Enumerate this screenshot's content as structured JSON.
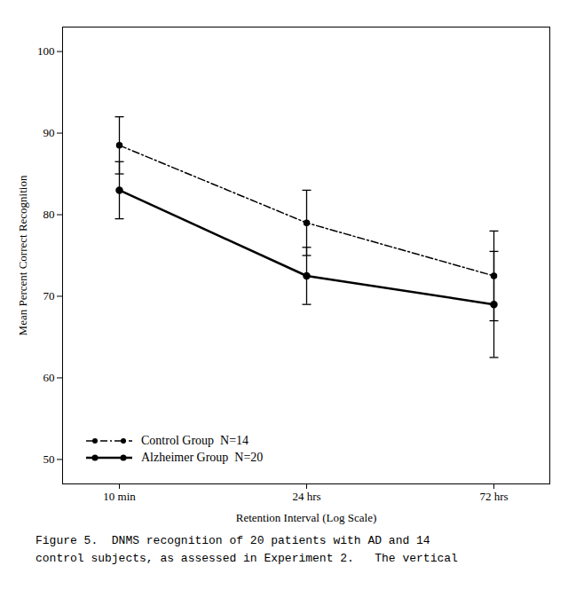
{
  "chart_data": {
    "type": "line",
    "xlabel": "Retention Interval (Log Scale)",
    "ylabel": "Mean Percent Correct Recognition",
    "categories": [
      "10 min",
      "24 hrs",
      "72 hrs"
    ],
    "series": [
      {
        "name": "Control Group  N=14",
        "color": "#000000",
        "marker": "circle",
        "line_style": "dashdot",
        "values": [
          88.5,
          79.0,
          72.5
        ],
        "errors": [
          3.5,
          4.0,
          5.5
        ]
      },
      {
        "name": "Alzheimer Group  N=20",
        "color": "#000000",
        "marker": "circle",
        "line_style": "solid",
        "values": [
          83.0,
          72.5,
          69.0
        ],
        "errors": [
          3.5,
          3.5,
          6.5
        ]
      }
    ],
    "ylim": [
      47,
      103
    ],
    "yticks": [
      50,
      60,
      70,
      80,
      90,
      100
    ],
    "grid": false,
    "legend": "lower left",
    "caption": [
      "Figure 5.  DNMS recognition of 20 patients with AD and 14",
      "control subjects, as assessed in Experiment 2.   The vertical"
    ]
  }
}
